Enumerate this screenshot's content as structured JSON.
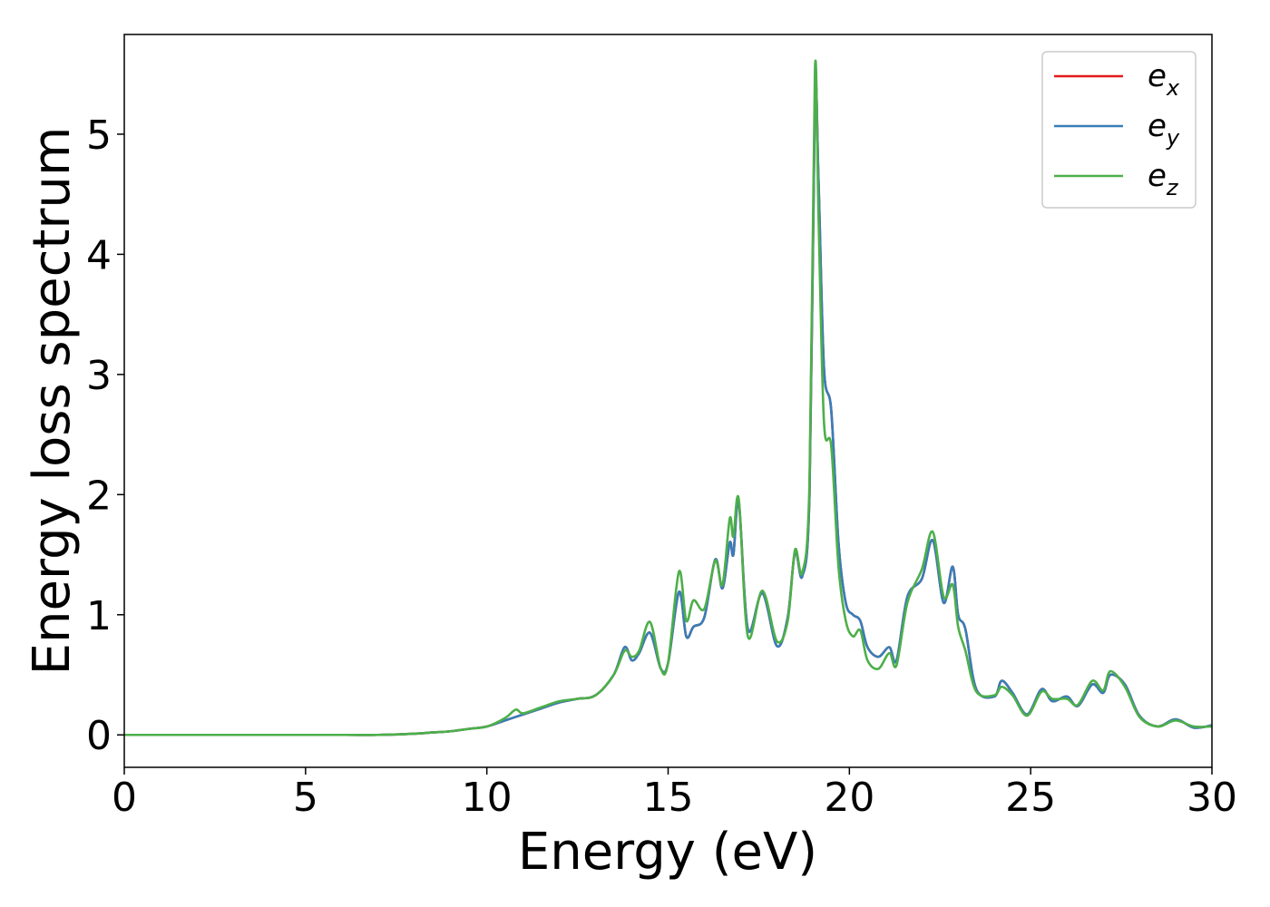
{
  "chart_data": {
    "type": "line",
    "xlabel": "Energy (eV)",
    "ylabel": "Energy loss spectrum",
    "xlim": [
      0,
      30
    ],
    "ylim": [
      -0.27,
      5.83
    ],
    "xticks": [
      0,
      5,
      10,
      15,
      20,
      25,
      30
    ],
    "yticks": [
      0,
      1,
      2,
      3,
      4,
      5
    ],
    "grid": false,
    "legend_position": "top-right",
    "series": [
      {
        "name": "e",
        "sub": "x",
        "color": "#e41a1c",
        "x": [
          0,
          2,
          4,
          6,
          7,
          8,
          8.5,
          9,
          9.5,
          10,
          10.5,
          11,
          11.5,
          12,
          12.5,
          13,
          13.5,
          13.8,
          14,
          14.2,
          14.5,
          14.8,
          15,
          15.3,
          15.5,
          15.7,
          16,
          16.3,
          16.5,
          16.7,
          16.8,
          16.95,
          17.2,
          17.6,
          18,
          18.3,
          18.5,
          18.7,
          18.9,
          19.05,
          19.15,
          19.3,
          19.5,
          19.7,
          19.9,
          20.1,
          20.3,
          20.5,
          20.8,
          21.1,
          21.3,
          21.6,
          22,
          22.3,
          22.6,
          22.85,
          23,
          23.2,
          23.5,
          24,
          24.2,
          24.5,
          24.9,
          25.3,
          25.6,
          26,
          26.3,
          26.7,
          27,
          27.2,
          27.6,
          28,
          28.5,
          29,
          29.5,
          30
        ],
        "y": [
          0,
          0,
          0,
          0,
          0,
          0.01,
          0.02,
          0.03,
          0.05,
          0.07,
          0.12,
          0.17,
          0.22,
          0.27,
          0.3,
          0.33,
          0.5,
          0.73,
          0.62,
          0.68,
          0.85,
          0.55,
          0.6,
          1.19,
          0.82,
          0.9,
          0.98,
          1.46,
          1.22,
          1.6,
          1.5,
          1.93,
          0.88,
          1.18,
          0.74,
          0.98,
          1.52,
          1.32,
          2.0,
          5.3,
          4.6,
          3.05,
          2.7,
          1.6,
          1.1,
          1.0,
          0.95,
          0.73,
          0.65,
          0.73,
          0.62,
          1.15,
          1.3,
          1.62,
          1.1,
          1.4,
          1.0,
          0.88,
          0.38,
          0.32,
          0.45,
          0.35,
          0.17,
          0.38,
          0.28,
          0.32,
          0.24,
          0.42,
          0.35,
          0.5,
          0.42,
          0.16,
          0.07,
          0.13,
          0.06,
          0.08
        ]
      },
      {
        "name": "e",
        "sub": "y",
        "color": "#377eb8",
        "x": [
          0,
          2,
          4,
          6,
          7,
          8,
          8.5,
          9,
          9.5,
          10,
          10.5,
          11,
          11.5,
          12,
          12.5,
          13,
          13.5,
          13.8,
          14,
          14.2,
          14.5,
          14.8,
          15,
          15.3,
          15.5,
          15.7,
          16,
          16.3,
          16.5,
          16.7,
          16.8,
          16.95,
          17.2,
          17.6,
          18,
          18.3,
          18.5,
          18.7,
          18.9,
          19.05,
          19.15,
          19.3,
          19.5,
          19.7,
          19.9,
          20.1,
          20.3,
          20.5,
          20.8,
          21.1,
          21.3,
          21.6,
          22,
          22.3,
          22.6,
          22.85,
          23,
          23.2,
          23.5,
          24,
          24.2,
          24.5,
          24.9,
          25.3,
          25.6,
          26,
          26.3,
          26.7,
          27,
          27.2,
          27.6,
          28,
          28.5,
          29,
          29.5,
          30
        ],
        "y": [
          0,
          0,
          0,
          0,
          0,
          0.01,
          0.02,
          0.03,
          0.05,
          0.07,
          0.12,
          0.17,
          0.22,
          0.27,
          0.3,
          0.33,
          0.5,
          0.73,
          0.62,
          0.68,
          0.85,
          0.55,
          0.6,
          1.19,
          0.82,
          0.9,
          0.98,
          1.46,
          1.22,
          1.6,
          1.5,
          1.93,
          0.88,
          1.18,
          0.74,
          0.98,
          1.52,
          1.32,
          2.0,
          5.3,
          4.6,
          3.05,
          2.7,
          1.6,
          1.1,
          1.0,
          0.95,
          0.73,
          0.65,
          0.73,
          0.62,
          1.15,
          1.3,
          1.62,
          1.1,
          1.4,
          1.0,
          0.88,
          0.38,
          0.32,
          0.45,
          0.35,
          0.17,
          0.38,
          0.28,
          0.32,
          0.24,
          0.42,
          0.35,
          0.5,
          0.42,
          0.16,
          0.07,
          0.13,
          0.06,
          0.08
        ]
      },
      {
        "name": "e",
        "sub": "z",
        "color": "#4daf4a",
        "x": [
          0,
          2,
          4,
          6,
          7,
          8,
          8.5,
          9,
          9.5,
          10,
          10.5,
          10.8,
          11,
          11.5,
          12,
          12.5,
          13,
          13.5,
          13.8,
          14,
          14.2,
          14.5,
          14.8,
          15,
          15.3,
          15.5,
          15.7,
          16,
          16.3,
          16.5,
          16.7,
          16.8,
          16.95,
          17.2,
          17.6,
          18,
          18.3,
          18.5,
          18.7,
          18.9,
          19.05,
          19.15,
          19.3,
          19.5,
          19.7,
          19.9,
          20.1,
          20.3,
          20.5,
          20.8,
          21.1,
          21.3,
          21.6,
          22,
          22.3,
          22.6,
          22.85,
          23,
          23.2,
          23.5,
          24,
          24.2,
          24.5,
          24.9,
          25.3,
          25.6,
          26,
          26.3,
          26.7,
          27,
          27.2,
          27.6,
          28,
          28.5,
          29,
          29.5,
          30
        ],
        "y": [
          0,
          0,
          0,
          0,
          0,
          0.01,
          0.02,
          0.03,
          0.05,
          0.07,
          0.14,
          0.21,
          0.18,
          0.23,
          0.28,
          0.3,
          0.33,
          0.5,
          0.7,
          0.65,
          0.7,
          0.94,
          0.55,
          0.6,
          1.36,
          0.95,
          1.12,
          1.05,
          1.45,
          1.25,
          1.8,
          1.65,
          1.96,
          0.82,
          1.2,
          0.78,
          0.95,
          1.54,
          1.35,
          2.1,
          5.54,
          4.3,
          2.6,
          2.4,
          1.4,
          0.95,
          0.82,
          0.87,
          0.62,
          0.55,
          0.68,
          0.58,
          1.1,
          1.38,
          1.69,
          1.15,
          1.25,
          0.9,
          0.7,
          0.36,
          0.33,
          0.4,
          0.33,
          0.16,
          0.36,
          0.3,
          0.3,
          0.25,
          0.45,
          0.37,
          0.53,
          0.4,
          0.15,
          0.07,
          0.12,
          0.07,
          0.07
        ]
      }
    ]
  }
}
